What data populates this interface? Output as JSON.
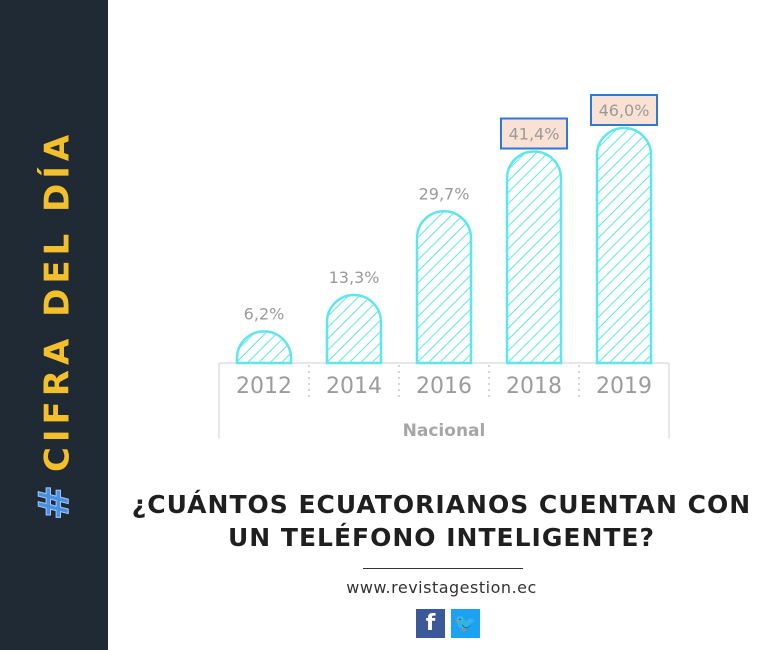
{
  "sidebar": {
    "hashtag": "#",
    "title": "CIFRA DEL DÍA"
  },
  "chart_data": {
    "type": "bar",
    "categories": [
      "2012",
      "2014",
      "2016",
      "2018",
      "2019"
    ],
    "values": [
      6.2,
      13.3,
      29.7,
      41.4,
      46.0
    ],
    "value_labels": [
      "6,2%",
      "13,3%",
      "29,7%",
      "41,4%",
      "46,0%"
    ],
    "highlighted": [
      "2018",
      "2019"
    ],
    "group_label": "Nacional",
    "ylim": [
      0,
      46
    ],
    "grid": false,
    "colors": {
      "bar_stroke": "#5fe6ec",
      "highlight_fill": "#f9e2d4",
      "highlight_stroke": "#2f78d6",
      "label": "#9a9a9a"
    }
  },
  "headline": {
    "line1": "¿CUÁNTOS ECUATORIANOS CUENTAN CON",
    "line2": "UN TELÉFONO INTELIGENTE?"
  },
  "footer": {
    "url": "www.revistagestion.ec",
    "facebook_icon": "f",
    "twitter_icon": "🐦"
  }
}
